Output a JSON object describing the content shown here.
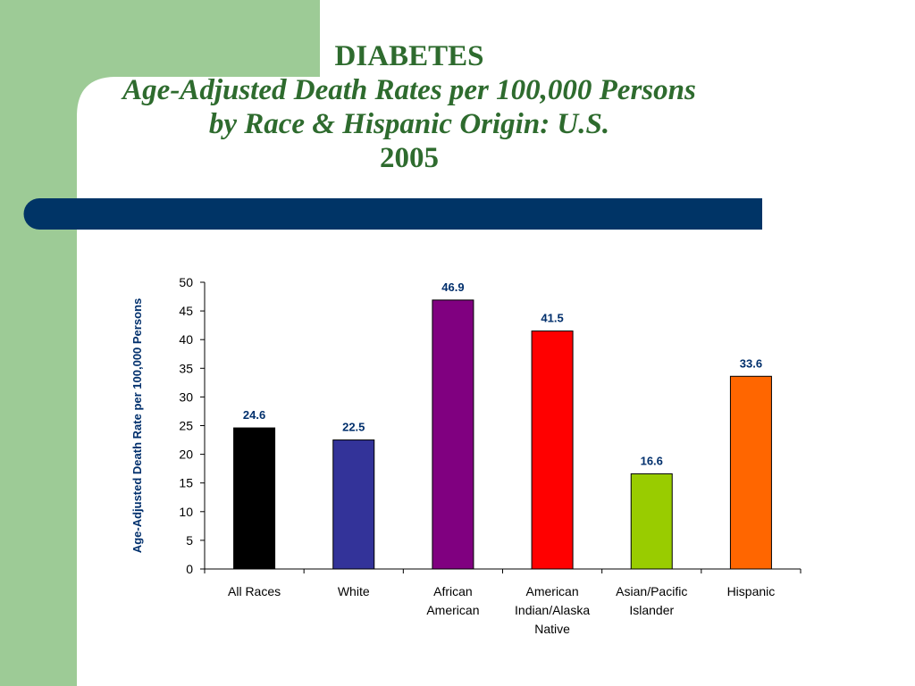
{
  "slide": {
    "title_line1": "DIABETES",
    "title_line2": "Age-Adjusted Death Rates per 100,000 Persons",
    "title_line3": "by Race & Hispanic Origin: U.S.",
    "title_line4": "2005",
    "colors": {
      "left_panel": "#9dcb96",
      "banner": "#003466",
      "title": "#2e6b2e",
      "labels": "#002f6c"
    }
  },
  "chart_data": {
    "type": "bar",
    "categories": [
      [
        "All Races"
      ],
      [
        "White"
      ],
      [
        "African",
        "American"
      ],
      [
        "American",
        "Indian/Alaska",
        "Native"
      ],
      [
        "Asian/Pacific",
        "Islander"
      ],
      [
        "Hispanic"
      ]
    ],
    "values": [
      24.6,
      22.5,
      46.9,
      41.5,
      16.6,
      33.6
    ],
    "value_labels": [
      "24.6",
      "22.5",
      "46.9",
      "41.5",
      "16.6",
      "33.6"
    ],
    "bar_colors": [
      "#000000",
      "#333399",
      "#800080",
      "#ff0000",
      "#99cc00",
      "#ff6600"
    ],
    "ylabel": "Age-Adjusted Death Rate per 100,000 Persons",
    "xlabel": "",
    "ylim": [
      0,
      50
    ],
    "yticks": [
      0,
      5,
      10,
      15,
      20,
      25,
      30,
      35,
      40,
      45,
      50
    ],
    "grid": false,
    "legend": "none"
  }
}
